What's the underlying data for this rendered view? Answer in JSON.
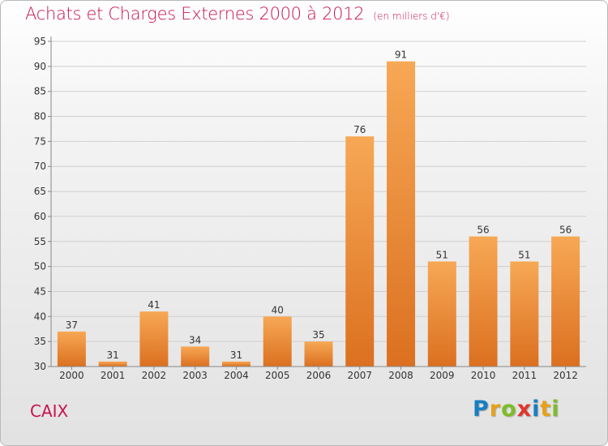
{
  "title": {
    "main": "Achats et Charges Externes 2000 à 2012",
    "unit": "(en milliers d'€)"
  },
  "commune": "CAIX",
  "logo": {
    "letters": [
      "P",
      "r",
      "o",
      "x",
      "i",
      "t",
      "i"
    ],
    "colors": [
      "#1a7ec1",
      "#e6a117",
      "#7cbd27",
      "#e0362c",
      "#1a7ec1",
      "#e6a117",
      "#7cbd27"
    ]
  },
  "colors": {
    "title": "#c8134e",
    "bar_top": "#f7a855",
    "bar_bottom": "#db7020",
    "grid": "#cfcfcf",
    "axis": "#888888"
  },
  "chart_data": {
    "type": "bar",
    "categories": [
      "2000",
      "2001",
      "2002",
      "2003",
      "2004",
      "2005",
      "2006",
      "2007",
      "2008",
      "2009",
      "2010",
      "2011",
      "2012"
    ],
    "values": [
      37,
      31,
      41,
      34,
      31,
      40,
      35,
      76,
      91,
      51,
      56,
      51,
      56
    ],
    "xlabel": "",
    "ylabel": "",
    "ylim": [
      30,
      95
    ],
    "yticks": [
      30,
      35,
      40,
      45,
      50,
      55,
      60,
      65,
      70,
      75,
      80,
      85,
      90,
      95
    ],
    "grid": true,
    "legend": "none"
  }
}
